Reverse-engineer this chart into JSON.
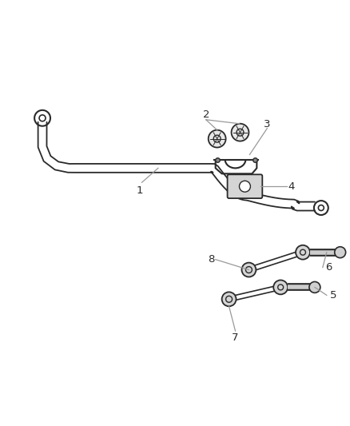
{
  "bg_color": "#ffffff",
  "line_color": "#2a2a2a",
  "label_color": "#2a2a2a",
  "leader_color": "#999999",
  "fig_width": 4.38,
  "fig_height": 5.33,
  "dpi": 100
}
